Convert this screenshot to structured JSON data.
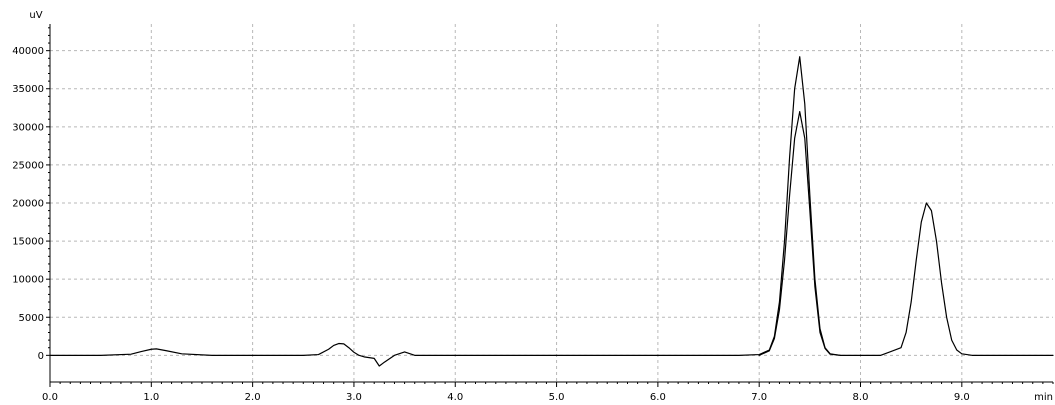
{
  "chart_data": {
    "type": "line",
    "title": "",
    "xlabel": "min",
    "ylabel": "uV",
    "xlim": [
      0,
      9.9
    ],
    "ylim": [
      -3500,
      43500
    ],
    "grid": true,
    "x_ticks": [
      0.0,
      1.0,
      2.0,
      3.0,
      4.0,
      5.0,
      6.0,
      7.0,
      8.0,
      9.0
    ],
    "x_tick_labels": [
      "0.0",
      "1.0",
      "2.0",
      "3.0",
      "4.0",
      "5.0",
      "6.0",
      "7.0",
      "8.0",
      "9.0"
    ],
    "y_ticks": [
      0,
      5000,
      10000,
      15000,
      20000,
      25000,
      30000,
      35000,
      40000
    ],
    "y_tick_labels": [
      "0",
      "5000",
      "10000",
      "15000",
      "20000",
      "25000",
      "30000",
      "35000",
      "40000"
    ],
    "series": [
      {
        "color": "#000000",
        "x": [
          0.0,
          0.5,
          0.8,
          0.9,
          1.0,
          1.05,
          1.15,
          1.3,
          1.6,
          1.9,
          2.2,
          2.5,
          2.65,
          2.75,
          2.8,
          2.85,
          2.9,
          2.95,
          3.0,
          3.05,
          3.1,
          3.2,
          3.25,
          3.3,
          3.4,
          3.5,
          3.6,
          4.0,
          5.0,
          6.0,
          6.8,
          7.0,
          7.1,
          7.15,
          7.2,
          7.25,
          7.3,
          7.35,
          7.4,
          7.45,
          7.5,
          7.55,
          7.6,
          7.65,
          7.7,
          7.8,
          8.0,
          8.2,
          8.4,
          8.45,
          8.5,
          8.55,
          8.6,
          8.65,
          8.7,
          8.75,
          8.8,
          8.85,
          8.9,
          8.95,
          9.0,
          9.1,
          9.3,
          9.5,
          9.9
        ],
        "y": [
          0,
          0,
          150,
          500,
          800,
          850,
          600,
          200,
          0,
          0,
          0,
          0,
          100,
          800,
          1300,
          1550,
          1500,
          1000,
          400,
          0,
          -200,
          -400,
          -1400,
          -900,
          0,
          450,
          0,
          0,
          0,
          0,
          0,
          100,
          700,
          2500,
          7000,
          15000,
          26000,
          35000,
          39200,
          33000,
          21000,
          10000,
          3500,
          1000,
          200,
          0,
          0,
          0,
          1000,
          3000,
          7000,
          12500,
          17500,
          20000,
          19000,
          15000,
          9500,
          5000,
          2000,
          700,
          200,
          0,
          0,
          0,
          0
        ]
      },
      {
        "color": "#000000",
        "x": [
          7.0,
          7.1,
          7.15,
          7.2,
          7.25,
          7.3,
          7.35,
          7.4,
          7.45,
          7.5,
          7.55,
          7.6,
          7.65,
          7.7,
          7.8
        ],
        "y": [
          0,
          600,
          2200,
          6000,
          12500,
          21000,
          28500,
          32000,
          28500,
          19000,
          9000,
          3000,
          900,
          150,
          0
        ]
      }
    ]
  }
}
